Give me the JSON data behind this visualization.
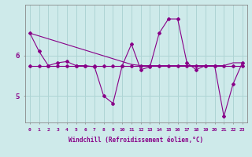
{
  "xlabel": "Windchill (Refroidissement éolien,°C)",
  "background_color": "#ceeaea",
  "line_color": "#880088",
  "x_values": [
    0,
    1,
    2,
    3,
    4,
    5,
    6,
    7,
    8,
    9,
    10,
    11,
    12,
    13,
    14,
    15,
    16,
    17,
    18,
    19,
    20,
    21,
    22,
    23
  ],
  "y_series1": [
    6.55,
    6.1,
    5.75,
    5.82,
    5.85,
    5.75,
    5.75,
    5.72,
    5.0,
    4.82,
    5.75,
    6.28,
    5.65,
    5.72,
    6.55,
    6.9,
    6.9,
    5.82,
    5.65,
    5.75,
    5.75,
    4.5,
    5.3,
    5.82
  ],
  "y_series2": [
    5.75,
    5.75,
    5.75,
    5.75,
    5.75,
    5.75,
    5.75,
    5.75,
    5.75,
    5.75,
    5.75,
    5.75,
    5.75,
    5.75,
    5.75,
    5.75,
    5.75,
    5.75,
    5.75,
    5.75,
    5.75,
    5.75,
    5.75,
    5.75
  ],
  "y_series3": [
    6.55,
    6.48,
    6.41,
    6.34,
    6.27,
    6.2,
    6.13,
    6.06,
    5.99,
    5.92,
    5.85,
    5.78,
    5.75,
    5.75,
    5.75,
    5.75,
    5.75,
    5.75,
    5.75,
    5.75,
    5.75,
    5.75,
    5.82,
    5.82
  ],
  "ylim": [
    4.35,
    7.25
  ],
  "yticks": [
    5,
    6
  ],
  "xlim": [
    -0.5,
    23.5
  ],
  "xticks": [
    0,
    1,
    2,
    3,
    4,
    5,
    6,
    7,
    8,
    9,
    10,
    11,
    12,
    13,
    14,
    15,
    16,
    17,
    18,
    19,
    20,
    21,
    22,
    23
  ],
  "grid_color": "#aed4d4",
  "figsize": [
    3.2,
    2.0
  ],
  "dpi": 100
}
